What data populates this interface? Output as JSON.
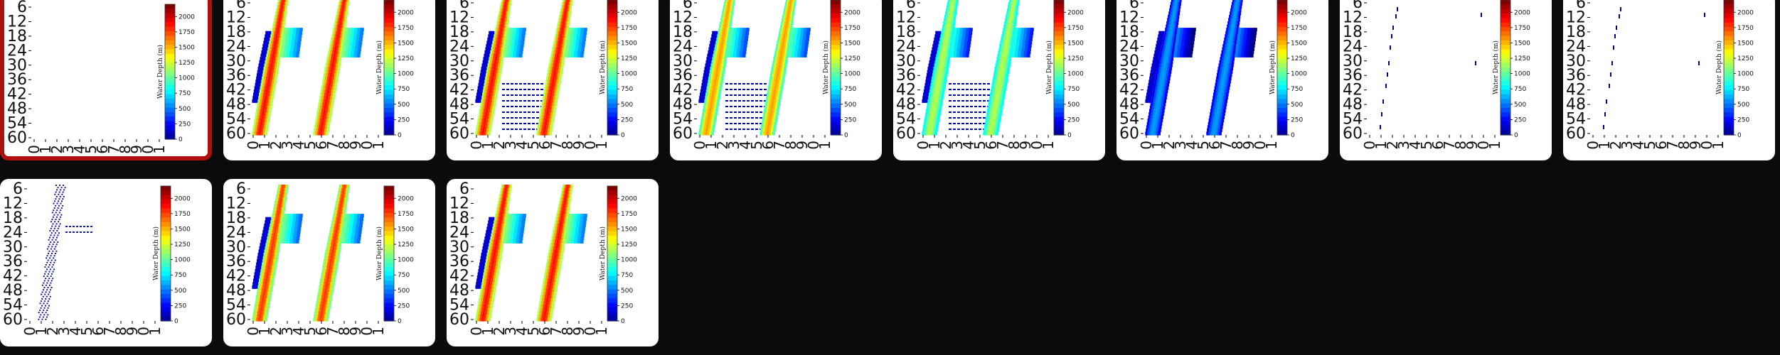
{
  "gallery": {
    "selected_index": 0,
    "colors": {
      "background": "#0b0b0b",
      "card": "#ffffff",
      "selected_border": "#b01010"
    },
    "panel_common": {
      "y_ticks": [
        "6",
        "12",
        "18",
        "24",
        "30",
        "36",
        "42",
        "48",
        "54",
        "60"
      ],
      "x_ticks": [
        "0",
        "1",
        "2",
        "3",
        "4",
        "5",
        "6",
        "7",
        "8",
        "9",
        "0",
        "1"
      ],
      "colorbar_ticks": [
        "0",
        "250",
        "500",
        "750",
        "1000",
        "1250",
        "1500",
        "1750",
        "2000"
      ],
      "colorbar_label": "Water Depth (m)",
      "colorbar_max": 2200
    },
    "panels": [
      {
        "id": 1,
        "pattern": "empty"
      },
      {
        "id": 2,
        "pattern": "double-red"
      },
      {
        "id": 3,
        "pattern": "double-red-dotted"
      },
      {
        "id": 4,
        "pattern": "double-yellow-dotted"
      },
      {
        "id": 5,
        "pattern": "double-cyan-dotted"
      },
      {
        "id": 6,
        "pattern": "double-blue"
      },
      {
        "id": 7,
        "pattern": "sparse"
      },
      {
        "id": 8,
        "pattern": "sparse"
      },
      {
        "id": 9,
        "pattern": "blue-stripe"
      },
      {
        "id": 10,
        "pattern": "double-red-yellow"
      },
      {
        "id": 11,
        "pattern": "double-red"
      }
    ]
  }
}
